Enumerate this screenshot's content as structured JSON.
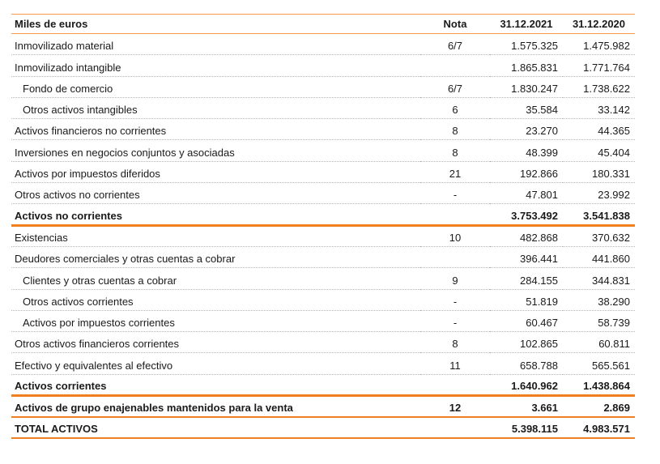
{
  "header": {
    "label": "Miles de euros",
    "nota": "Nota",
    "year1": "31.12.2021",
    "year2": "31.12.2020"
  },
  "rows": [
    {
      "label": "Inmovilizado material",
      "nota": "6/7",
      "y1": "1.575.325",
      "y2": "1.475.982",
      "style": "normal"
    },
    {
      "label": "Inmovilizado intangible",
      "nota": "",
      "y1": "1.865.831",
      "y2": "1.771.764",
      "style": "normal"
    },
    {
      "label": "Fondo de comercio",
      "nota": "6/7",
      "y1": "1.830.247",
      "y2": "1.738.622",
      "style": "sub"
    },
    {
      "label": "Otros activos intangibles",
      "nota": "6",
      "y1": "35.584",
      "y2": "33.142",
      "style": "sub"
    },
    {
      "label": "Activos financieros no corrientes",
      "nota": "8",
      "y1": "23.270",
      "y2": "44.365",
      "style": "normal"
    },
    {
      "label": "Inversiones en negocios conjuntos y asociadas",
      "nota": "8",
      "y1": "48.399",
      "y2": "45.404",
      "style": "normal"
    },
    {
      "label": "Activos por impuestos diferidos",
      "nota": "21",
      "y1": "192.866",
      "y2": "180.331",
      "style": "normal"
    },
    {
      "label": "Otros activos no corrientes",
      "nota": "-",
      "y1": "47.801",
      "y2": "23.992",
      "style": "normal"
    },
    {
      "label": "Activos no corrientes",
      "nota": "",
      "y1": "3.753.492",
      "y2": "3.541.838",
      "style": "total"
    },
    {
      "label": "Existencias",
      "nota": "10",
      "y1": "482.868",
      "y2": "370.632",
      "style": "normal"
    },
    {
      "label": "Deudores comerciales y otras cuentas a cobrar",
      "nota": "",
      "y1": "396.441",
      "y2": "441.860",
      "style": "normal"
    },
    {
      "label": "Clientes y otras cuentas a cobrar",
      "nota": "9",
      "y1": "284.155",
      "y2": "344.831",
      "style": "sub"
    },
    {
      "label": "Otros activos corrientes",
      "nota": "-",
      "y1": "51.819",
      "y2": "38.290",
      "style": "sub"
    },
    {
      "label": "Activos por impuestos corrientes",
      "nota": "-",
      "y1": "60.467",
      "y2": "58.739",
      "style": "sub"
    },
    {
      "label": "Otros activos financieros corrientes",
      "nota": "8",
      "y1": "102.865",
      "y2": "60.811",
      "style": "normal"
    },
    {
      "label": "Efectivo y equivalentes al efectivo",
      "nota": "11",
      "y1": "658.788",
      "y2": "565.561",
      "style": "normal"
    },
    {
      "label": "Activos corrientes",
      "nota": "",
      "y1": "1.640.962",
      "y2": "1.438.864",
      "style": "total"
    },
    {
      "label": "Activos de grupo enajenables mantenidos para la venta",
      "nota": "12",
      "y1": "3.661",
      "y2": "2.869",
      "style": "total-thin"
    },
    {
      "label": "TOTAL ACTIVOS",
      "nota": "",
      "y1": "5.398.115",
      "y2": "4.983.571",
      "style": "total-thin"
    }
  ]
}
